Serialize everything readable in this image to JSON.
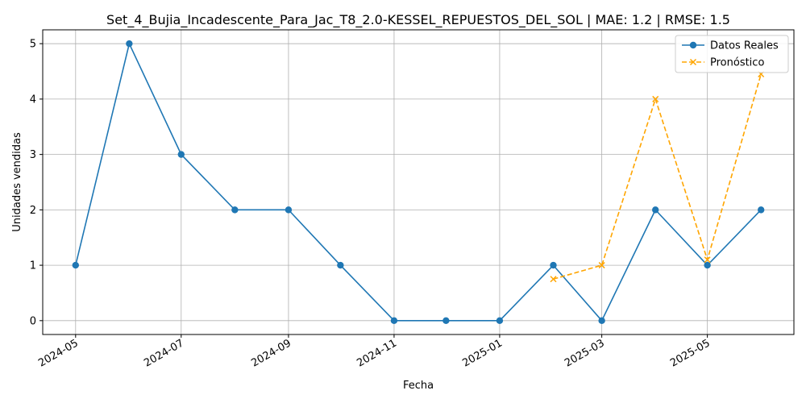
{
  "chart_data": {
    "type": "line",
    "title": "Set_4_Bujia_Incadescente_Para_Jac_T8_2.0-KESSEL_REPUESTOS_DEL_SOL | MAE: 1.2 | RMSE: 1.5",
    "xlabel": "Fecha",
    "ylabel": "Unidades vendidas",
    "xlim": [
      "2024-04-12",
      "2025-06-20"
    ],
    "ylim": [
      -0.25,
      5.25
    ],
    "x_ticks": [
      "2024-05-01",
      "2024-07-01",
      "2024-09-01",
      "2024-11-01",
      "2025-01-01",
      "2025-03-01",
      "2025-05-01"
    ],
    "x_tick_labels": [
      "2024-05",
      "2024-07",
      "2024-09",
      "2024-11",
      "2025-01",
      "2025-03",
      "2025-05"
    ],
    "y_ticks": [
      0,
      1,
      2,
      3,
      4,
      5
    ],
    "grid": true,
    "legend_position": "top-right",
    "series": [
      {
        "name": "Datos Reales",
        "color": "#1f77b4",
        "line_style": "solid",
        "marker": "circle",
        "x": [
          "2024-05-01",
          "2024-06-01",
          "2024-07-01",
          "2024-08-01",
          "2024-09-01",
          "2024-10-01",
          "2024-11-01",
          "2024-12-01",
          "2025-01-01",
          "2025-02-01",
          "2025-03-01",
          "2025-04-01",
          "2025-05-01",
          "2025-06-01"
        ],
        "values": [
          1,
          5,
          3,
          2,
          2,
          1,
          0,
          0,
          0,
          1,
          0,
          2,
          1,
          2
        ]
      },
      {
        "name": "Pronóstico",
        "color": "#ffa500",
        "line_style": "dashed",
        "marker": "x",
        "x": [
          "2025-02-01",
          "2025-03-01",
          "2025-04-01",
          "2025-05-01",
          "2025-06-01"
        ],
        "values": [
          0.75,
          1.0,
          4.0,
          1.1,
          4.45
        ]
      }
    ]
  }
}
